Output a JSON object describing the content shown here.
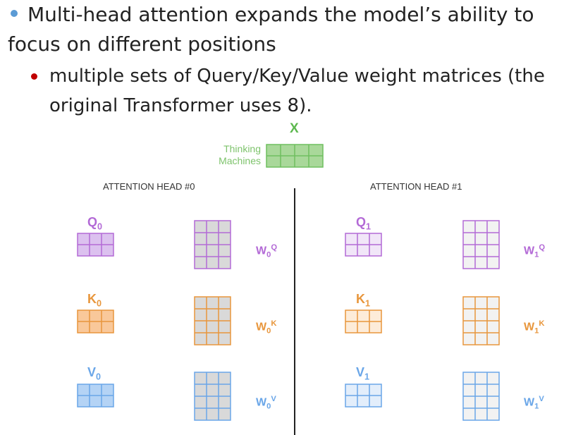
{
  "slide": {
    "bullet1": "Multi-head attention expands the model’s ability to focus on different positions",
    "bullet2": "multiple sets of Query/Key/Value weight matrices (the original Transformer uses 8)."
  },
  "diagram": {
    "x_label": "X",
    "input_words": [
      "Thinking",
      "Machines"
    ],
    "heads": [
      {
        "title": "ATTENTION HEAD #0",
        "q": {
          "name": "Q",
          "sub": "0"
        },
        "k": {
          "name": "K",
          "sub": "0"
        },
        "v": {
          "name": "V",
          "sub": "0"
        },
        "wq": {
          "name": "W",
          "sub": "0",
          "sup": "Q"
        },
        "wk": {
          "name": "W",
          "sub": "0",
          "sup": "K"
        },
        "wv": {
          "name": "W",
          "sub": "0",
          "sup": "V"
        }
      },
      {
        "title": "ATTENTION HEAD #1",
        "q": {
          "name": "Q",
          "sub": "1"
        },
        "k": {
          "name": "K",
          "sub": "1"
        },
        "v": {
          "name": "V",
          "sub": "1"
        },
        "wq": {
          "name": "W",
          "sub": "1",
          "sup": "Q"
        },
        "wk": {
          "name": "W",
          "sub": "1",
          "sup": "K"
        },
        "wv": {
          "name": "W",
          "sub": "1",
          "sup": "V"
        }
      }
    ],
    "colors": {
      "x_text": "#5db84f",
      "x_fill": "#a9d89a",
      "x_stroke": "#6fbf5f",
      "query": "#b36ad6",
      "key": "#e8963c",
      "value": "#6aa6e8",
      "head0_q_fill": "#dcc1ef",
      "head0_k_fill": "#f9c89a",
      "head0_v_fill": "#b4d3f5",
      "head1_q_fill": "#f1e6f8",
      "head1_k_fill": "#fdecd9",
      "head1_v_fill": "#e3eefb",
      "head0_w_fill": "#d9d9d9",
      "head1_w_fill": "#f2f2f2"
    }
  }
}
